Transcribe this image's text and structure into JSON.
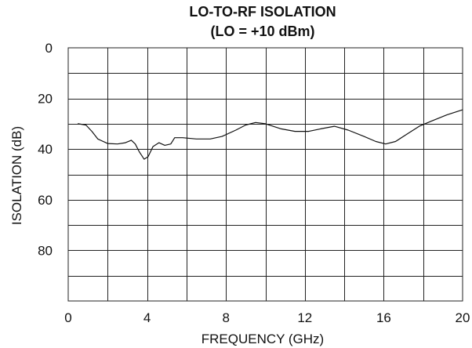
{
  "chart_data": {
    "type": "line",
    "title": "LO-TO-RF ISOLATION",
    "subtitle": "(LO = +10 dBm)",
    "xlabel": "FREQUENCY (GHz)",
    "ylabel": "ISOLATION (dB)",
    "xlim": [
      0,
      20
    ],
    "ylim": [
      0,
      100
    ],
    "y_inverted": true,
    "grid": true,
    "x_ticks": [
      0,
      4,
      8,
      12,
      16,
      20
    ],
    "x_tick_labels": [
      "0",
      "4",
      "8",
      "12",
      "16",
      "20"
    ],
    "y_ticks": [
      0,
      20,
      40,
      60,
      80
    ],
    "y_tick_labels": [
      "0",
      "20",
      "40",
      "60",
      "80"
    ],
    "x_grid_step": 2,
    "y_grid_step": 10,
    "series": [
      {
        "color": "#111111",
        "points": [
          [
            0.5,
            30
          ],
          [
            0.9,
            30.5
          ],
          [
            1.2,
            33
          ],
          [
            1.5,
            36
          ],
          [
            2.0,
            37.8
          ],
          [
            2.5,
            38
          ],
          [
            2.9,
            37.5
          ],
          [
            3.2,
            36.5
          ],
          [
            3.4,
            38
          ],
          [
            3.6,
            41
          ],
          [
            3.85,
            44
          ],
          [
            4.05,
            43
          ],
          [
            4.3,
            39
          ],
          [
            4.6,
            37.5
          ],
          [
            4.9,
            38.5
          ],
          [
            5.2,
            38
          ],
          [
            5.4,
            35.5
          ],
          [
            5.8,
            35.5
          ],
          [
            6.5,
            36
          ],
          [
            7.2,
            36
          ],
          [
            7.8,
            35
          ],
          [
            8.5,
            32.5
          ],
          [
            9.0,
            30.5
          ],
          [
            9.5,
            29.5
          ],
          [
            10.0,
            30
          ],
          [
            10.8,
            32
          ],
          [
            11.5,
            33
          ],
          [
            12.2,
            33
          ],
          [
            12.8,
            32
          ],
          [
            13.5,
            31
          ],
          [
            14.2,
            32.5
          ],
          [
            15.0,
            35
          ],
          [
            15.6,
            37
          ],
          [
            16.1,
            38
          ],
          [
            16.6,
            37
          ],
          [
            17.2,
            34
          ],
          [
            17.8,
            31
          ],
          [
            18.4,
            29
          ],
          [
            19.2,
            26.5
          ],
          [
            20.0,
            24.5
          ]
        ]
      }
    ]
  }
}
